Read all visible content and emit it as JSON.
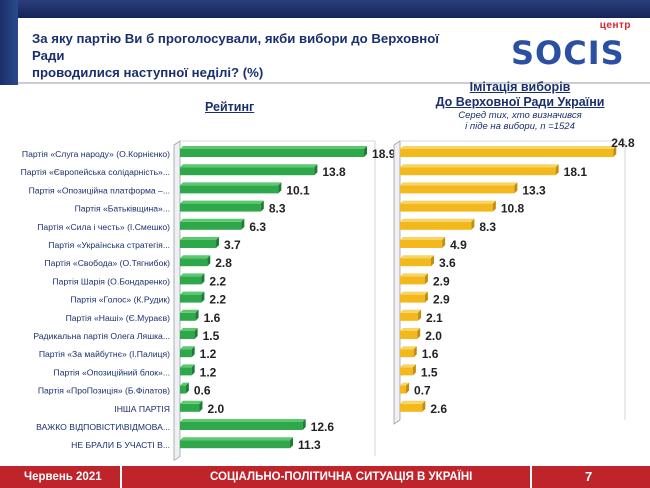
{
  "header": {
    "title_line1": "За яку партію Ви б проголосували, якби вибори до Верховної Ради",
    "title_line2": "проводилися наступної неділі? (%)",
    "logo_small": "центр",
    "logo_main": "SOCIS"
  },
  "chart_data": [
    {
      "type": "bar",
      "title": "Рейтинг",
      "categories": [
        "Партія «Слуга народу» (О.Корнієнко)",
        "Партія «Європейська солідарність»...",
        "Партія «Опозиційна платформа –...",
        "Партія «Батьківщина»...",
        "Партія «Сила і честь» (І.Смешко)",
        "Партія «Українська стратегія...",
        "Партія «Свобода» (О.Тягнибок)",
        "Партія Шарія (О.Бондаренко)",
        "Партія «Голос» (К.Рудик)",
        "Партія «Наші» (Є.Мураєв)",
        "Радикальна партія Олега Ляшка...",
        "Партія «За майбутнє» (І.Палиця)",
        "Партія «Опозиційний блок»...",
        "Партія «ПроПозиція» (Б.Філатов)",
        "ІНША ПАРТІЯ",
        "ВАЖКО ВІДПОВІСТИ\\ВІДМОВА...",
        "НЕ БРАЛИ Б УЧАСТІ В..."
      ],
      "values": [
        18.9,
        13.8,
        10.1,
        8.3,
        6.3,
        3.7,
        2.8,
        2.2,
        2.2,
        1.6,
        1.5,
        1.2,
        1.2,
        0.6,
        2.0,
        12.6,
        11.3
      ],
      "value_labels": [
        "18.9",
        "13.8",
        "10.1",
        "8.3",
        "6.3",
        "3.7",
        "2.8",
        "2.2",
        "2.2",
        "1.6",
        "1.5",
        "1.2",
        "1.2",
        "0.6",
        "2.0",
        "12.6",
        "11.3"
      ],
      "color": "#2ea84a"
    },
    {
      "type": "bar",
      "title": "Імітація виборів До Верховної Ради України",
      "note": "Серед тих, хто визначився і піде на вибори, n =1524",
      "values": [
        24.8,
        18.1,
        13.3,
        10.8,
        8.3,
        4.9,
        3.6,
        2.9,
        2.9,
        2.1,
        2.0,
        1.6,
        1.5,
        0.7,
        2.6
      ],
      "value_labels": [
        "24.8",
        "18.1",
        "13.3",
        "10.8",
        "8.3",
        "4.9",
        "3.6",
        "2.9",
        "2.9",
        "2.1",
        "2.0",
        "1.6",
        "1.5",
        "0.7",
        "2.6"
      ],
      "color": "#f2b81c"
    }
  ],
  "right_title_line1": "Імітація виборів",
  "right_title_line2": "До Верховної Ради України",
  "right_note_line1": "Серед тих, хто визначився",
  "right_note_line2": "і піде на вибори, n =1524",
  "footer": {
    "date": "Червень 2021",
    "title": "СОЦІАЛЬНО-ПОЛІТИЧНА СИТУАЦІЯ В УКРАЇНІ",
    "page": "7"
  }
}
